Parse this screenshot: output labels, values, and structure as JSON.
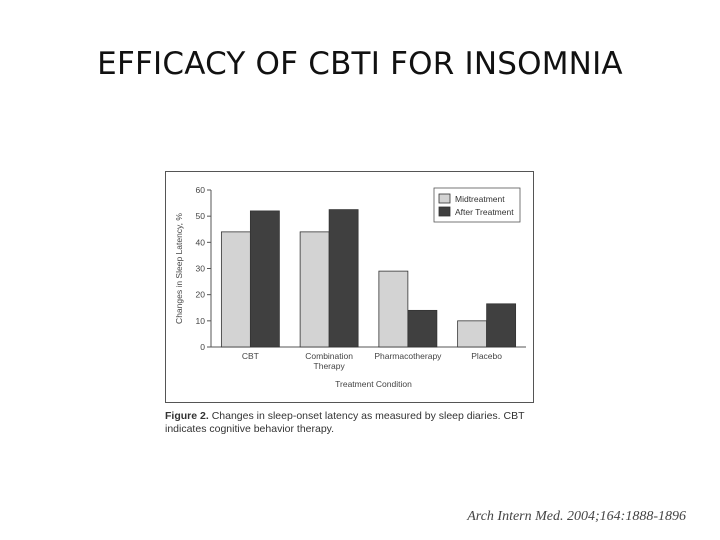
{
  "slide": {
    "title": "EFFICACY OF CBTI FOR INSOMNIA",
    "citation": "Arch Intern Med. 2004;164:1888-1896"
  },
  "caption": {
    "label": "Figure 2.",
    "text": "Changes in sleep-onset latency as measured by sleep diaries. CBT indicates cognitive behavior therapy."
  },
  "chart_data": {
    "type": "bar",
    "categories": [
      "CBT",
      "Combination Therapy",
      "Pharmacotherapy",
      "Placebo"
    ],
    "series": [
      {
        "name": "Midtreatment",
        "values": [
          44,
          44,
          29,
          10
        ],
        "color": "#d3d3d3"
      },
      {
        "name": "After Treatment",
        "values": [
          52,
          52.5,
          14,
          16.5
        ],
        "color": "#404040"
      }
    ],
    "xlabel": "Treatment Condition",
    "ylabel": "Changes in Sleep Latency, %",
    "ylim": [
      0,
      60
    ],
    "yticks": [
      0,
      10,
      20,
      30,
      40,
      50,
      60
    ],
    "grid": false,
    "legend": "top-right"
  }
}
